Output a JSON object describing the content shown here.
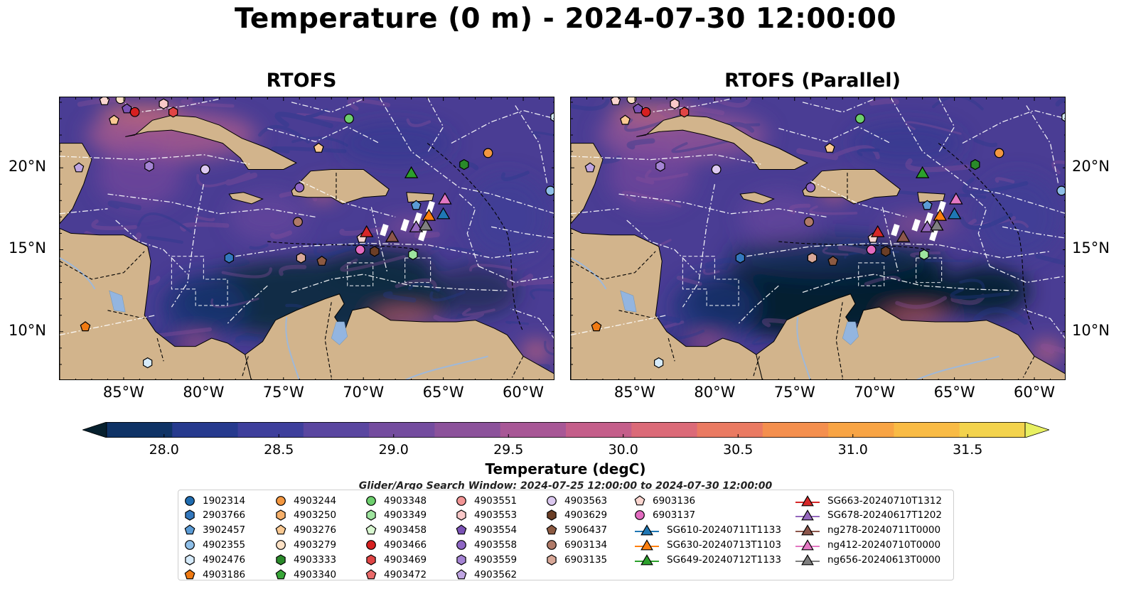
{
  "title": "Temperature (0 m) - 2024-07-30 12:00:00",
  "panels": [
    {
      "title": "RTOFS"
    },
    {
      "title": "RTOFS (Parallel)"
    }
  ],
  "axes": {
    "x_ticks": [
      "85°W",
      "80°W",
      "75°W",
      "70°W",
      "65°W",
      "60°W"
    ],
    "x_tick_values": [
      -85,
      -80,
      -75,
      -70,
      -65,
      -60
    ],
    "y_ticks": [
      "20°N",
      "15°N",
      "10°N"
    ],
    "y_tick_values": [
      20,
      15,
      10
    ],
    "lon_range": [
      -89,
      -58
    ],
    "lat_range": [
      7,
      24.3
    ]
  },
  "colorbar": {
    "title": "Temperature (degC)",
    "labels": [
      "28.0",
      "28.5",
      "29.0",
      "29.5",
      "30.0",
      "30.5",
      "31.0",
      "31.5"
    ],
    "min": 27.75,
    "max": 31.75,
    "extend": "both",
    "colors": [
      "#06202e",
      "#0f3366",
      "#263a8e",
      "#3e3f9c",
      "#5a46a0",
      "#744c9f",
      "#8c529b",
      "#a85796",
      "#c45e8a",
      "#db6a78",
      "#ea7a62",
      "#f48f4e",
      "#f8a444",
      "#f9bb45",
      "#f3d34d",
      "#e8f062"
    ]
  },
  "search_window": "Glider/Argo Search Window: 2024-07-25 12:00:00 to 2024-07-30 12:00:00",
  "colors": {
    "land": "#d2b48c",
    "water_bodies": "#93b5e0",
    "ocean_base": "#4a3d94"
  },
  "legend": [
    {
      "label": "1902314",
      "marker": "circle",
      "color": "#1f6cb0"
    },
    {
      "label": "2903766",
      "marker": "hexagon",
      "color": "#3378be"
    },
    {
      "label": "3902457",
      "marker": "pentagon",
      "color": "#5b9bd5"
    },
    {
      "label": "4902355",
      "marker": "circle",
      "color": "#8fbfe8"
    },
    {
      "label": "4902476",
      "marker": "hexagon",
      "color": "#d6ebfb"
    },
    {
      "label": "4903186",
      "marker": "pentagon",
      "color": "#f07a12"
    },
    {
      "label": "4903244",
      "marker": "circle",
      "color": "#f39740"
    },
    {
      "label": "4903250",
      "marker": "hexagon",
      "color": "#f7b06a"
    },
    {
      "label": "4903276",
      "marker": "pentagon",
      "color": "#fac992"
    },
    {
      "label": "4903279",
      "marker": "circle",
      "color": "#fde1c5"
    },
    {
      "label": "4903333",
      "marker": "hexagon",
      "color": "#2a8a2a"
    },
    {
      "label": "4903340",
      "marker": "pentagon",
      "color": "#38a638"
    },
    {
      "label": "4903348",
      "marker": "circle",
      "color": "#6dcf6d"
    },
    {
      "label": "4903349",
      "marker": "hexagon",
      "color": "#9ee49e"
    },
    {
      "label": "4903458",
      "marker": "pentagon",
      "color": "#d8f7d0"
    },
    {
      "label": "4903466",
      "marker": "circle",
      "color": "#d62020"
    },
    {
      "label": "4903469",
      "marker": "hexagon",
      "color": "#e04545"
    },
    {
      "label": "4903472",
      "marker": "pentagon",
      "color": "#ea6a6a"
    },
    {
      "label": "4903551",
      "marker": "circle",
      "color": "#f29595"
    },
    {
      "label": "4903553",
      "marker": "hexagon",
      "color": "#f9c8c8"
    },
    {
      "label": "4903554",
      "marker": "pentagon",
      "color": "#7a52b5"
    },
    {
      "label": "4903558",
      "marker": "circle",
      "color": "#8e66c4"
    },
    {
      "label": "4903559",
      "marker": "hexagon",
      "color": "#a584d4"
    },
    {
      "label": "4903562",
      "marker": "pentagon",
      "color": "#bfa5e2"
    },
    {
      "label": "4903563",
      "marker": "circle",
      "color": "#dcc9f0"
    },
    {
      "label": "4903629",
      "marker": "hexagon",
      "color": "#6b3e26"
    },
    {
      "label": "5906437",
      "marker": "pentagon",
      "color": "#8c5a42"
    },
    {
      "label": "6903134",
      "marker": "circle",
      "color": "#b07a68"
    },
    {
      "label": "6903135",
      "marker": "hexagon",
      "color": "#d8a898"
    },
    {
      "label": "6903136",
      "marker": "pentagon",
      "color": "#fbd6d0"
    },
    {
      "label": "6903137",
      "marker": "circle",
      "color": "#e36bc0"
    },
    {
      "label": "SG610-20240711T1133",
      "marker": "triangle",
      "color": "#1f77b4",
      "line": true
    },
    {
      "label": "SG630-20240713T1103",
      "marker": "triangle",
      "color": "#ff7f0e",
      "line": true
    },
    {
      "label": "SG649-20240712T1133",
      "marker": "triangle",
      "color": "#2ca02c",
      "line": true
    },
    {
      "label": "SG663-20240710T1312",
      "marker": "triangle",
      "color": "#d62728",
      "line": true
    },
    {
      "label": "SG678-20240617T1202",
      "marker": "triangle",
      "color": "#9467bd",
      "line": true
    },
    {
      "label": "ng278-20240711T0000",
      "marker": "triangle",
      "color": "#8c564b",
      "line": true
    },
    {
      "label": "ng412-20240710T0000",
      "marker": "triangle",
      "color": "#e377c2",
      "line": true
    },
    {
      "label": "ng656-20240613T0000",
      "marker": "triangle",
      "color": "#7f7f7f",
      "line": true
    }
  ],
  "floats": [
    {
      "lon": -86.2,
      "lat": 24.1,
      "id": "6903136"
    },
    {
      "lon": -85.2,
      "lat": 24.2,
      "id": "4903279"
    },
    {
      "lon": -84.8,
      "lat": 23.6,
      "id": "4903554"
    },
    {
      "lon": -84.3,
      "lat": 23.4,
      "id": "4903466"
    },
    {
      "lon": -82.5,
      "lat": 23.9,
      "id": "4903553"
    },
    {
      "lon": -81.9,
      "lat": 23.4,
      "id": "4903469"
    },
    {
      "lon": -85.6,
      "lat": 22.9,
      "id": "4903276"
    },
    {
      "lon": -70.9,
      "lat": 23.0,
      "id": "4903348"
    },
    {
      "lon": -72.8,
      "lat": 21.2,
      "id": "4903276"
    },
    {
      "lon": -62.2,
      "lat": 20.9,
      "id": "4903244"
    },
    {
      "lon": -63.7,
      "lat": 20.2,
      "id": "4903333"
    },
    {
      "lon": -87.8,
      "lat": 20.0,
      "id": "4903562"
    },
    {
      "lon": -83.4,
      "lat": 20.1,
      "id": "4903559"
    },
    {
      "lon": -79.9,
      "lat": 19.9,
      "id": "4903563"
    },
    {
      "lon": -74.0,
      "lat": 18.8,
      "id": "4903558"
    },
    {
      "lon": -58.3,
      "lat": 18.6,
      "id": "4902355"
    },
    {
      "lon": -66.7,
      "lat": 17.7,
      "id": "3902457"
    },
    {
      "lon": -74.1,
      "lat": 16.7,
      "id": "6903134"
    },
    {
      "lon": -70.1,
      "lat": 15.7,
      "id": "6903136"
    },
    {
      "lon": -70.2,
      "lat": 15.0,
      "id": "6903137"
    },
    {
      "lon": -69.3,
      "lat": 14.9,
      "id": "4903629"
    },
    {
      "lon": -66.9,
      "lat": 14.7,
      "id": "4903349"
    },
    {
      "lon": -78.4,
      "lat": 14.5,
      "id": "2903766"
    },
    {
      "lon": -73.9,
      "lat": 14.5,
      "id": "6903135"
    },
    {
      "lon": -72.6,
      "lat": 14.3,
      "id": "5906437"
    },
    {
      "lon": -87.4,
      "lat": 10.3,
      "id": "4903186"
    },
    {
      "lon": -83.5,
      "lat": 8.1,
      "id": "4902476"
    },
    {
      "lon": -58.0,
      "lat": 23.1,
      "id": "4902476"
    }
  ],
  "gliders": [
    {
      "lon": -67.0,
      "lat": 19.7,
      "id": "SG649-20240712T1133"
    },
    {
      "lon": -64.9,
      "lat": 18.1,
      "id": "ng412-20240710T0000"
    },
    {
      "lon": -65.9,
      "lat": 17.1,
      "id": "SG630-20240713T1103"
    },
    {
      "lon": -65.0,
      "lat": 17.2,
      "id": "SG610-20240711T1133"
    },
    {
      "lon": -66.7,
      "lat": 16.4,
      "id": "SG678-20240617T1202"
    },
    {
      "lon": -66.1,
      "lat": 16.5,
      "id": "ng656-20240613T0000"
    },
    {
      "lon": -69.8,
      "lat": 16.1,
      "id": "SG663-20240710T1312"
    },
    {
      "lon": -68.2,
      "lat": 15.8,
      "id": "ng278-20240711T0000"
    }
  ]
}
